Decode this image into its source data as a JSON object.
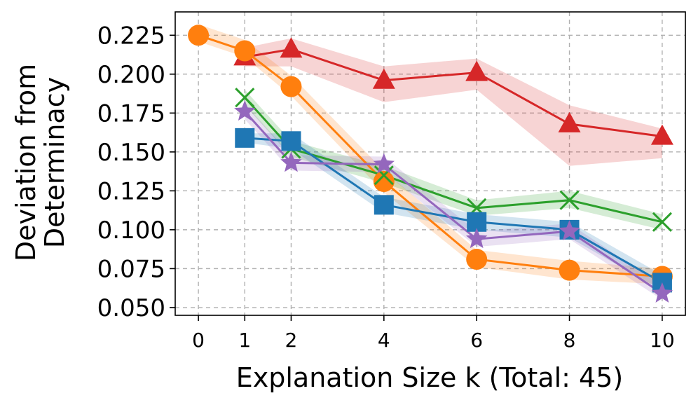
{
  "chart_data": {
    "type": "line",
    "title": "",
    "xlabel": "Explanation Size k (Total: 45)",
    "ylabel_lines": [
      "Deviation from",
      "Determinacy"
    ],
    "xlim": [
      -0.5,
      10.5
    ],
    "ylim": [
      0.045,
      0.24
    ],
    "x_ticks": [
      0,
      1,
      2,
      4,
      6,
      8,
      10
    ],
    "y_ticks": [
      0.05,
      0.075,
      0.1,
      0.125,
      0.15,
      0.175,
      0.2,
      0.225
    ],
    "y_tick_labels": [
      "0.050",
      "0.075",
      "0.100",
      "0.125",
      "0.150",
      "0.175",
      "0.200",
      "0.225"
    ],
    "grid": true,
    "series": [
      {
        "name": "red-triangle",
        "color": "#d62728",
        "marker": "triangle",
        "x": [
          1,
          2,
          4,
          6,
          8,
          10
        ],
        "y": [
          0.211,
          0.216,
          0.196,
          0.201,
          0.168,
          0.16
        ],
        "lower": [
          0.205,
          0.205,
          0.182,
          0.19,
          0.141,
          0.146
        ],
        "upper": [
          0.217,
          0.223,
          0.205,
          0.21,
          0.18,
          0.165
        ]
      },
      {
        "name": "orange-circle",
        "color": "#ff7f0e",
        "marker": "circle",
        "x": [
          0,
          1,
          2,
          4,
          6,
          8,
          10
        ],
        "y": [
          0.225,
          0.215,
          0.192,
          0.131,
          0.081,
          0.074,
          0.07
        ],
        "lower": [
          0.221,
          0.211,
          0.186,
          0.124,
          0.076,
          0.068,
          0.065
        ],
        "upper": [
          0.232,
          0.222,
          0.199,
          0.138,
          0.087,
          0.08,
          0.075
        ]
      },
      {
        "name": "green-x",
        "color": "#2ca02c",
        "marker": "x",
        "x": [
          1,
          2,
          4,
          6,
          8,
          10
        ],
        "y": [
          0.185,
          0.152,
          0.135,
          0.114,
          0.119,
          0.105
        ],
        "lower": [
          0.18,
          0.147,
          0.13,
          0.109,
          0.114,
          0.1
        ],
        "upper": [
          0.19,
          0.157,
          0.141,
          0.119,
          0.125,
          0.11
        ]
      },
      {
        "name": "blue-square",
        "color": "#1f77b4",
        "marker": "square",
        "x": [
          1,
          2,
          4,
          6,
          8,
          10
        ],
        "y": [
          0.159,
          0.157,
          0.116,
          0.105,
          0.1,
          0.066
        ],
        "lower": [
          0.156,
          0.152,
          0.111,
          0.1,
          0.095,
          0.061
        ],
        "upper": [
          0.162,
          0.162,
          0.121,
          0.11,
          0.105,
          0.071
        ]
      },
      {
        "name": "purple-star",
        "color": "#9467bd",
        "marker": "star",
        "x": [
          1,
          2,
          4,
          6,
          8,
          10
        ],
        "y": [
          0.176,
          0.143,
          0.142,
          0.094,
          0.099,
          0.059
        ],
        "lower": [
          0.171,
          0.138,
          0.137,
          0.089,
          0.094,
          0.055
        ],
        "upper": [
          0.181,
          0.148,
          0.147,
          0.099,
          0.104,
          0.064
        ]
      }
    ]
  }
}
